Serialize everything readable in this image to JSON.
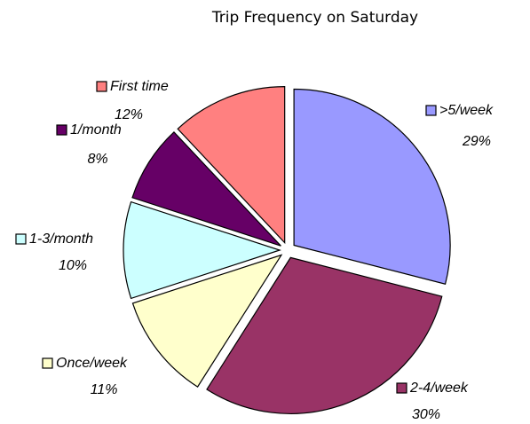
{
  "chart_data": {
    "type": "pie",
    "title": "Trip Frequency on Saturday",
    "categories": [
      ">5/week",
      "2-4/week",
      "Once/week",
      "1-3/month",
      "1/month",
      "First time"
    ],
    "values": [
      29,
      30,
      11,
      10,
      8,
      12
    ],
    "value_labels": [
      "29%",
      "30%",
      "11%",
      "10%",
      "8%",
      "12%"
    ],
    "colors": [
      "#9999ff",
      "#993366",
      "#ffffcc",
      "#ccffff",
      "#660066",
      "#ff8080"
    ],
    "exploded": true
  }
}
